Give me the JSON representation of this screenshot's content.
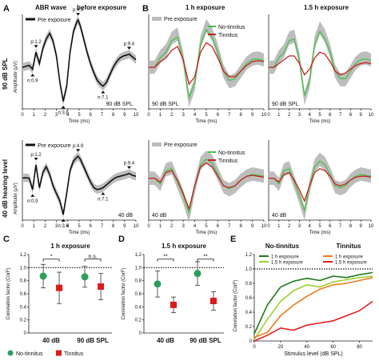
{
  "figure": {
    "panels": {
      "A": "A",
      "B": "B",
      "C": "C",
      "D": "D",
      "E": "E"
    },
    "colors": {
      "band": "#bdbdbd",
      "pre": "#111111",
      "no_tinnitus": "#45c24a",
      "tinnitus": "#cc1f1f",
      "green_dot": "#2e9e5e",
      "red_sq": "#dd1b1b"
    }
  },
  "panel_a": {
    "title_left": "ABR wave",
    "title_right": "before exposure",
    "row_labels": [
      "90 dB SPL",
      "40 dB hearing level"
    ],
    "ylabel": "Amplitude (μV)",
    "xlabel": "Time (ms)",
    "legend": "Pre exposure",
    "level_labels": [
      "90 dB SPL",
      "40 dB"
    ],
    "peaks_top": [
      {
        "label": "p:1.2",
        "t": 1.2
      },
      {
        "label": "n:0.9",
        "t": 0.9
      },
      {
        "label": "n:3.6",
        "t": 3.6
      },
      {
        "label": "p:4.9",
        "t": 4.9
      },
      {
        "label": "n:7.1",
        "t": 7.1
      },
      {
        "label": "p:9.4",
        "t": 9.4
      }
    ],
    "peaks_bottom": [
      {
        "label": "p:1.2",
        "t": 1.2
      },
      {
        "label": "n:0.9",
        "t": 0.9
      },
      {
        "label": "n:3.6",
        "t": 3.6
      },
      {
        "label": "p:4.9",
        "t": 4.9
      },
      {
        "label": "n:7.1",
        "t": 7.1
      },
      {
        "label": "p:9.4",
        "t": 9.4
      }
    ]
  },
  "panel_b": {
    "titles": [
      "1 h exposure",
      "1.5 h exposure"
    ],
    "legend": [
      "Pre exposure",
      "No-tinnitus",
      "Tinnitus"
    ],
    "xlabel": "Time (ms)",
    "level_labels": [
      "90 dB SPL",
      "90 dB SPL",
      "40 dB",
      "40 dB"
    ]
  },
  "chart_data": [
    {
      "type": "line",
      "id": "A-top",
      "xlabel": "Time (ms)",
      "ylabel": "Amplitude (μV)",
      "xlim": [
        0,
        10
      ],
      "ylim": [
        -2.2,
        2.8
      ],
      "x": [
        0,
        0.3,
        0.6,
        0.9,
        1.2,
        1.5,
        1.8,
        2.1,
        2.4,
        2.7,
        3.0,
        3.3,
        3.6,
        3.9,
        4.2,
        4.5,
        4.8,
        4.9,
        5.1,
        5.4,
        5.7,
        6.0,
        6.3,
        6.6,
        6.9,
        7.1,
        7.4,
        7.7,
        8.0,
        8.3,
        8.6,
        8.9,
        9.2,
        9.4,
        9.7,
        10
      ],
      "series": [
        {
          "name": "Pre exposure",
          "values": [
            0,
            0.05,
            0.1,
            -0.1,
            0.8,
            0.2,
            1.0,
            1.5,
            1.8,
            1.4,
            0.6,
            -0.8,
            -1.8,
            -1.0,
            0.8,
            1.9,
            2.4,
            2.5,
            2.2,
            1.5,
            0.8,
            0.2,
            -0.3,
            -0.7,
            -0.9,
            -1.0,
            -0.8,
            -0.4,
            0,
            0.3,
            0.5,
            0.6,
            0.65,
            0.7,
            0.55,
            0.4
          ]
        }
      ]
    },
    {
      "type": "line",
      "id": "A-bottom",
      "xlabel": "Time (ms)",
      "ylabel": "Amplitude (μV)",
      "xlim": [
        0,
        10
      ],
      "ylim": [
        -2.2,
        2.0
      ],
      "x": [
        0,
        0.3,
        0.6,
        0.9,
        1.2,
        1.5,
        1.8,
        2.1,
        2.4,
        2.7,
        3.0,
        3.3,
        3.6,
        3.9,
        4.2,
        4.5,
        4.8,
        4.9,
        5.1,
        5.4,
        5.7,
        6.0,
        6.3,
        6.6,
        6.9,
        7.1,
        7.4,
        7.7,
        8.0,
        8.3,
        8.6,
        8.9,
        9.2,
        9.4,
        9.7,
        10
      ],
      "series": [
        {
          "name": "Pre exposure",
          "values": [
            0,
            0.02,
            0,
            -0.6,
            0.7,
            -0.5,
            0.3,
            0.6,
            0.2,
            -0.4,
            -0.8,
            -1.2,
            -1.9,
            -0.8,
            0.4,
            0.9,
            1.1,
            1.15,
            1.0,
            0.6,
            0.2,
            -0.2,
            -0.5,
            -0.6,
            -0.55,
            -0.5,
            -0.35,
            -0.2,
            -0.05,
            0.05,
            0.1,
            0.15,
            0.2,
            0.25,
            0.15,
            0.1
          ]
        }
      ]
    },
    {
      "type": "line",
      "id": "B-1h-90dB",
      "xlabel": "Time (ms)",
      "xlim": [
        0,
        10
      ],
      "ylim": [
        -2.2,
        2.8
      ],
      "x": [
        0,
        0.5,
        1.0,
        1.5,
        2.0,
        2.5,
        3.0,
        3.5,
        4.0,
        4.5,
        5.0,
        5.5,
        6.0,
        6.5,
        7.0,
        7.5,
        8.0,
        8.5,
        9.0,
        9.5,
        10
      ],
      "series": [
        {
          "name": "No-tinnitus",
          "values": [
            0,
            0,
            0.5,
            0.8,
            1.4,
            1.6,
            0.4,
            -1.6,
            -0.8,
            1.2,
            2.0,
            1.6,
            0.8,
            -0.2,
            -0.7,
            -0.6,
            -0.2,
            0.2,
            0.4,
            0.45,
            0.35
          ]
        },
        {
          "name": "Tinnitus",
          "values": [
            0,
            0,
            0.3,
            0.5,
            0.9,
            1.1,
            0.4,
            -0.9,
            -0.5,
            0.8,
            1.3,
            1.1,
            0.5,
            -0.2,
            -0.5,
            -0.5,
            -0.2,
            0.1,
            0.3,
            0.35,
            0.3
          ]
        }
      ]
    },
    {
      "type": "line",
      "id": "B-1.5h-90dB",
      "xlabel": "Time (ms)",
      "xlim": [
        0,
        10
      ],
      "ylim": [
        -2.2,
        2.8
      ],
      "x": [
        0,
        0.5,
        1.0,
        1.5,
        2.0,
        2.5,
        3.0,
        3.5,
        4.0,
        4.5,
        5.0,
        5.5,
        6.0,
        6.5,
        7.0,
        7.5,
        8.0,
        8.5,
        9.0,
        9.5,
        10
      ],
      "series": [
        {
          "name": "No-tinnitus",
          "values": [
            0,
            0,
            0.5,
            0.8,
            1.4,
            1.5,
            0.4,
            -1.5,
            -0.7,
            1.2,
            1.9,
            1.5,
            0.8,
            -0.2,
            -0.6,
            -0.6,
            -0.2,
            0.2,
            0.4,
            0.45,
            0.35
          ]
        },
        {
          "name": "Tinnitus",
          "values": [
            0,
            0,
            0.2,
            0.4,
            0.6,
            0.6,
            0.2,
            -0.4,
            -0.1,
            0.5,
            0.8,
            0.7,
            0.3,
            -0.2,
            -0.4,
            -0.3,
            -0.1,
            0.1,
            0.2,
            0.25,
            0.2
          ]
        }
      ]
    },
    {
      "type": "line",
      "id": "B-1h-40dB",
      "xlabel": "Time (ms)",
      "xlim": [
        0,
        10
      ],
      "ylim": [
        -2.2,
        2.0
      ],
      "x": [
        0,
        0.5,
        1.0,
        1.5,
        2.0,
        2.5,
        3.0,
        3.5,
        4.0,
        4.5,
        5.0,
        5.5,
        6.0,
        6.5,
        7.0,
        7.5,
        8.0,
        8.5,
        9.0,
        9.5,
        10
      ],
      "series": [
        {
          "name": "No-tinnitus",
          "values": [
            0,
            0,
            -0.3,
            0.4,
            0.5,
            -0.2,
            -0.9,
            -1.8,
            -0.4,
            0.7,
            1.0,
            0.8,
            0.2,
            -0.4,
            -0.55,
            -0.4,
            -0.1,
            0.1,
            0.2,
            0.15,
            0.1
          ]
        },
        {
          "name": "Tinnitus",
          "values": [
            0,
            0,
            -0.2,
            0.3,
            0.4,
            -0.1,
            -0.8,
            -1.6,
            -0.4,
            0.6,
            0.8,
            0.6,
            0.1,
            -0.4,
            -0.5,
            -0.4,
            -0.1,
            0.1,
            0.15,
            0.1,
            0.05
          ]
        }
      ]
    },
    {
      "type": "line",
      "id": "B-1.5h-40dB",
      "xlabel": "Time (ms)",
      "xlim": [
        0,
        10
      ],
      "ylim": [
        -2.2,
        2.0
      ],
      "x": [
        0,
        0.5,
        1.0,
        1.5,
        2.0,
        2.5,
        3.0,
        3.5,
        4.0,
        4.5,
        5.0,
        5.5,
        6.0,
        6.5,
        7.0,
        7.5,
        8.0,
        8.5,
        9.0,
        9.5,
        10
      ],
      "series": [
        {
          "name": "No-tinnitus",
          "values": [
            0,
            0,
            -0.3,
            0.4,
            0.5,
            -0.2,
            -0.9,
            -1.7,
            -0.4,
            0.6,
            0.9,
            0.7,
            0.2,
            -0.4,
            -0.5,
            -0.4,
            -0.1,
            0.1,
            0.2,
            0.15,
            0.1
          ]
        },
        {
          "name": "Tinnitus",
          "values": [
            0,
            0,
            -0.2,
            0.2,
            0.3,
            -0.1,
            -0.6,
            -1.2,
            -0.4,
            0.3,
            0.5,
            0.4,
            0.1,
            -0.3,
            -0.4,
            -0.3,
            -0.1,
            0.05,
            0.1,
            0.1,
            0.05
          ]
        }
      ]
    },
    {
      "type": "scatter",
      "id": "C",
      "title": "1 h exposure",
      "ylabel": "Correlation factor (CorF)",
      "ylim": [
        0,
        1.2
      ],
      "yticks": [
        "0",
        "0.2",
        "0.4",
        "0.6",
        "0.8",
        "1.0",
        "1.2"
      ],
      "categories": [
        "40 dB",
        "90 dB SPL"
      ],
      "series": [
        {
          "name": "No-tinnitus",
          "values": [
            0.87,
            0.86
          ],
          "err": [
            0.18,
            0.16
          ]
        },
        {
          "name": "Tinnitus",
          "values": [
            0.69,
            0.71
          ],
          "err": [
            0.24,
            0.2
          ]
        }
      ],
      "significance": [
        "*",
        "n.s."
      ],
      "reference_line": 1.0
    },
    {
      "type": "scatter",
      "id": "D",
      "title": "1.5 h exposure",
      "ylabel": "Correlation factor (CorF)",
      "ylim": [
        0,
        1.2
      ],
      "yticks": [
        "0",
        "0.2",
        "0.4",
        "0.6",
        "0.8",
        "1.0",
        "1.2"
      ],
      "categories": [
        "40 dB",
        "90 dB SPL"
      ],
      "series": [
        {
          "name": "No-tinnitus",
          "values": [
            0.75,
            0.91
          ],
          "err": [
            0.2,
            0.18
          ]
        },
        {
          "name": "Tinnitus",
          "values": [
            0.43,
            0.49
          ],
          "err": [
            0.12,
            0.14
          ]
        }
      ],
      "significance": [
        "**",
        "**"
      ],
      "reference_line": 1.0
    },
    {
      "type": "line",
      "id": "E",
      "xlabel": "Stimulus level (dB SPL)",
      "ylabel": "Correlation factor (CorF)",
      "xlim": [
        0,
        90
      ],
      "ylim": [
        0,
        1.2
      ],
      "xticks": [
        "0",
        "20",
        "40",
        "60",
        "80"
      ],
      "yticks": [
        "0",
        "0.2",
        "0.4",
        "0.6",
        "0.8",
        "1.0",
        "1.2"
      ],
      "groups": [
        "No-tinnitus",
        "Tinnitus"
      ],
      "x": [
        0,
        10,
        20,
        30,
        40,
        50,
        60,
        70,
        80,
        90
      ],
      "series": [
        {
          "name": "1 h exposure",
          "group": "No-tinnitus",
          "color": "#1f7a1f",
          "values": [
            0.1,
            0.5,
            0.75,
            0.83,
            0.87,
            0.84,
            0.9,
            0.88,
            0.92,
            0.95
          ]
        },
        {
          "name": "1.5 h exposure",
          "group": "No-tinnitus",
          "color": "#9bd12e",
          "values": [
            0.02,
            0.3,
            0.55,
            0.7,
            0.78,
            0.75,
            0.82,
            0.85,
            0.88,
            0.9
          ]
        },
        {
          "name": "1 h exposure",
          "group": "Tinnitus",
          "color": "#f07a1a",
          "values": [
            0.05,
            0.12,
            0.35,
            0.5,
            0.62,
            0.72,
            0.78,
            0.8,
            0.84,
            0.88
          ]
        },
        {
          "name": "1.5 h exposure",
          "group": "Tinnitus",
          "color": "#e02020",
          "values": [
            0.0,
            0.08,
            0.18,
            0.15,
            0.22,
            0.25,
            0.28,
            0.35,
            0.42,
            0.55
          ]
        }
      ],
      "reference_line": 1.0
    }
  ],
  "legend_cd": [
    {
      "label": "No-tinnitus",
      "color": "#2e9e5e"
    },
    {
      "label": "Tinnitus",
      "color": "#dd1b1b"
    }
  ]
}
